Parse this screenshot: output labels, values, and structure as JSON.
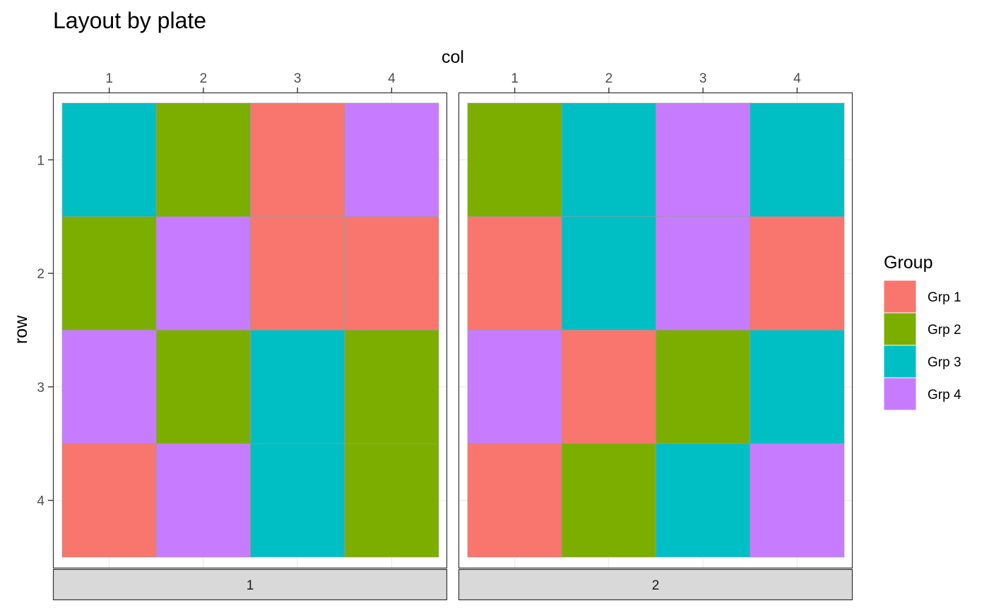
{
  "chart_data": {
    "type": "heatmap",
    "title": "Layout by plate",
    "xlabel": "col",
    "ylabel": "row",
    "x_position": "top",
    "x_ticks": [
      1,
      2,
      3,
      4
    ],
    "y_ticks": [
      1,
      2,
      3,
      4
    ],
    "grid": true,
    "legend": {
      "title": "Group",
      "placement": "right",
      "entries": [
        {
          "label": "Grp 1",
          "color": "#F8766D"
        },
        {
          "label": "Grp 2",
          "color": "#7CAE00"
        },
        {
          "label": "Grp 3",
          "color": "#00BFC4"
        },
        {
          "label": "Grp 4",
          "color": "#C77CFF"
        }
      ]
    },
    "panels": [
      {
        "strip_label": "1",
        "cells": [
          [
            "Grp 3",
            "Grp 2",
            "Grp 1",
            "Grp 4"
          ],
          [
            "Grp 2",
            "Grp 4",
            "Grp 1",
            "Grp 1"
          ],
          [
            "Grp 4",
            "Grp 2",
            "Grp 3",
            "Grp 2"
          ],
          [
            "Grp 1",
            "Grp 4",
            "Grp 3",
            "Grp 2"
          ]
        ]
      },
      {
        "strip_label": "2",
        "cells": [
          [
            "Grp 2",
            "Grp 3",
            "Grp 4",
            "Grp 3"
          ],
          [
            "Grp 1",
            "Grp 3",
            "Grp 4",
            "Grp 1"
          ],
          [
            "Grp 4",
            "Grp 1",
            "Grp 2",
            "Grp 3"
          ],
          [
            "Grp 1",
            "Grp 2",
            "Grp 3",
            "Grp 4"
          ]
        ]
      }
    ]
  }
}
